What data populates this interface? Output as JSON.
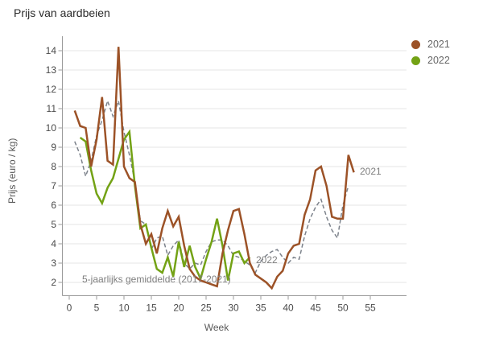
{
  "title": "Prijs van aardbeien",
  "legend": {
    "items": [
      {
        "label": "2021",
        "color": "#9c5227"
      },
      {
        "label": "2022",
        "color": "#73a215"
      }
    ]
  },
  "annotations": {
    "avg_series_label": "5-jaarlijks gemiddelde (2017-2021)",
    "series_2021_end_label": "2021",
    "series_2022_end_label": "2022"
  },
  "chart_data": {
    "type": "line",
    "title": "Prijs van aardbeien",
    "xlabel": "Week",
    "ylabel": "Prijs (euro / kg)",
    "xlim": [
      0,
      61.5
    ],
    "ylim": [
      1.3,
      14.75
    ],
    "x_ticks": [
      0,
      5,
      10,
      15,
      20,
      25,
      30,
      35,
      40,
      45,
      50,
      55
    ],
    "y_ticks": [
      2,
      3,
      4,
      5,
      6,
      7,
      8,
      9,
      10,
      11,
      12,
      13,
      14
    ],
    "grid": "horizontal-only",
    "legend_position": "top-right",
    "series": [
      {
        "name": "2021",
        "color": "#9c5227",
        "style": "solid",
        "points": [
          [
            1,
            10.9
          ],
          [
            2,
            10.1
          ],
          [
            3,
            10.0
          ],
          [
            4,
            8.0
          ],
          [
            5,
            9.4
          ],
          [
            6,
            11.6
          ],
          [
            7,
            8.3
          ],
          [
            8,
            8.1
          ],
          [
            9,
            14.2
          ],
          [
            10,
            8.0
          ],
          [
            11,
            7.4
          ],
          [
            12,
            7.2
          ],
          [
            13,
            5.0
          ],
          [
            14,
            4.0
          ],
          [
            15,
            4.5
          ],
          [
            16,
            3.5
          ],
          [
            17,
            4.8
          ],
          [
            18,
            5.7
          ],
          [
            19,
            4.9
          ],
          [
            20,
            5.4
          ],
          [
            21,
            3.9
          ],
          [
            22,
            2.7
          ],
          [
            23,
            2.3
          ],
          [
            24,
            2.1
          ],
          [
            25,
            2.0
          ],
          [
            26,
            1.9
          ],
          [
            27,
            1.8
          ],
          [
            28,
            3.5
          ],
          [
            29,
            4.7
          ],
          [
            30,
            5.7
          ],
          [
            31,
            5.8
          ],
          [
            32,
            4.5
          ],
          [
            33,
            3.0
          ],
          [
            34,
            2.4
          ],
          [
            35,
            2.2
          ],
          [
            36,
            2.0
          ],
          [
            37,
            1.7
          ],
          [
            38,
            2.3
          ],
          [
            39,
            2.6
          ],
          [
            40,
            3.5
          ],
          [
            41,
            3.9
          ],
          [
            42,
            4.0
          ],
          [
            43,
            5.5
          ],
          [
            44,
            6.3
          ],
          [
            45,
            7.8
          ],
          [
            46,
            8.0
          ],
          [
            47,
            7.0
          ],
          [
            48,
            5.4
          ],
          [
            49,
            5.3
          ],
          [
            50,
            5.3
          ],
          [
            51,
            8.6
          ],
          [
            52,
            7.7
          ]
        ]
      },
      {
        "name": "2022",
        "color": "#73a215",
        "style": "solid",
        "points": [
          [
            2,
            9.5
          ],
          [
            3,
            9.3
          ],
          [
            4,
            7.8
          ],
          [
            5,
            6.6
          ],
          [
            6,
            6.1
          ],
          [
            7,
            6.9
          ],
          [
            8,
            7.4
          ],
          [
            9,
            8.4
          ],
          [
            10,
            9.4
          ],
          [
            11,
            9.8
          ],
          [
            12,
            7.0
          ],
          [
            13,
            4.8
          ],
          [
            14,
            5.0
          ],
          [
            15,
            3.8
          ],
          [
            16,
            2.7
          ],
          [
            17,
            2.5
          ],
          [
            18,
            3.3
          ],
          [
            19,
            2.3
          ],
          [
            20,
            4.1
          ],
          [
            21,
            2.8
          ],
          [
            22,
            3.9
          ],
          [
            23,
            2.8
          ],
          [
            24,
            2.2
          ],
          [
            25,
            3.2
          ],
          [
            26,
            4.1
          ],
          [
            27,
            5.3
          ],
          [
            28,
            3.9
          ],
          [
            29,
            2.1
          ],
          [
            30,
            3.5
          ],
          [
            31,
            3.6
          ],
          [
            32,
            3.0
          ],
          [
            33,
            3.3
          ]
        ]
      },
      {
        "name": "5-jaarlijks gemiddelde (2017-2021)",
        "color": "#7c828b",
        "style": "dashed",
        "points": [
          [
            1,
            9.3
          ],
          [
            2,
            8.6
          ],
          [
            3,
            7.5
          ],
          [
            4,
            8.3
          ],
          [
            5,
            9.6
          ],
          [
            6,
            10.4
          ],
          [
            7,
            11.4
          ],
          [
            8,
            10.6
          ],
          [
            9,
            11.4
          ],
          [
            10,
            9.8
          ],
          [
            11,
            8.6
          ],
          [
            12,
            7.2
          ],
          [
            13,
            5.2
          ],
          [
            14,
            5.0
          ],
          [
            15,
            3.7
          ],
          [
            16,
            4.3
          ],
          [
            17,
            4.4
          ],
          [
            18,
            3.4
          ],
          [
            19,
            3.9
          ],
          [
            20,
            4.2
          ],
          [
            21,
            3.0
          ],
          [
            22,
            2.7
          ],
          [
            23,
            3.0
          ],
          [
            24,
            2.9
          ],
          [
            25,
            3.6
          ],
          [
            26,
            4.1
          ],
          [
            27,
            4.2
          ],
          [
            28,
            4.2
          ],
          [
            29,
            3.9
          ],
          [
            30,
            3.4
          ],
          [
            31,
            3.3
          ],
          [
            32,
            3.1
          ],
          [
            33,
            2.9
          ],
          [
            34,
            2.5
          ],
          [
            35,
            3.1
          ],
          [
            36,
            3.4
          ],
          [
            37,
            3.6
          ],
          [
            38,
            3.7
          ],
          [
            39,
            3.3
          ],
          [
            40,
            3.0
          ],
          [
            41,
            3.3
          ],
          [
            42,
            3.2
          ],
          [
            43,
            4.4
          ],
          [
            44,
            5.3
          ],
          [
            45,
            5.9
          ],
          [
            46,
            6.3
          ],
          [
            47,
            5.4
          ],
          [
            48,
            4.7
          ],
          [
            49,
            4.3
          ],
          [
            50,
            6.0
          ],
          [
            51,
            7.0
          ]
        ]
      }
    ]
  }
}
